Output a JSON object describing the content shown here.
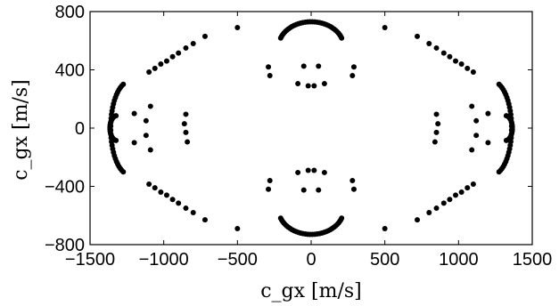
{
  "chart_data": {
    "type": "scatter",
    "title": "",
    "xlabel": "c_gx [m/s]",
    "ylabel": "c_gx [m/s]",
    "xlim": [
      -1500,
      1500
    ],
    "ylim": [
      -800,
      800
    ],
    "xticks": [
      "−1500",
      "−1000",
      "−500",
      "0",
      "500",
      "1000",
      "1500"
    ],
    "yticks": [
      "800",
      "400",
      "0",
      "−400",
      "−800"
    ],
    "grid": false,
    "marker_color": "#000000",
    "series": [
      {
        "points": [
          [
            -500,
            690
          ],
          [
            -500,
            -690
          ],
          [
            500,
            690
          ],
          [
            500,
            -690
          ],
          [
            -720,
            630
          ],
          [
            -800,
            580
          ],
          [
            -850,
            550
          ],
          [
            -900,
            515
          ],
          [
            -940,
            490
          ],
          [
            -980,
            460
          ],
          [
            -1020,
            440
          ],
          [
            -1060,
            410
          ],
          [
            -1100,
            385
          ],
          [
            720,
            630
          ],
          [
            800,
            580
          ],
          [
            850,
            550
          ],
          [
            900,
            515
          ],
          [
            940,
            490
          ],
          [
            980,
            460
          ],
          [
            1020,
            440
          ],
          [
            1060,
            410
          ],
          [
            1100,
            385
          ],
          [
            -720,
            -630
          ],
          [
            -800,
            -580
          ],
          [
            -850,
            -550
          ],
          [
            -900,
            -515
          ],
          [
            -940,
            -490
          ],
          [
            -980,
            -460
          ],
          [
            -1020,
            -440
          ],
          [
            -1060,
            -410
          ],
          [
            -1100,
            -385
          ],
          [
            720,
            -630
          ],
          [
            800,
            -580
          ],
          [
            850,
            -550
          ],
          [
            900,
            -515
          ],
          [
            940,
            -490
          ],
          [
            980,
            -460
          ],
          [
            1020,
            -440
          ],
          [
            1060,
            -410
          ],
          [
            1100,
            -385
          ],
          [
            -290,
            420
          ],
          [
            -280,
            360
          ],
          [
            -280,
            -360
          ],
          [
            -290,
            -420
          ],
          [
            290,
            420
          ],
          [
            280,
            360
          ],
          [
            280,
            -360
          ],
          [
            290,
            -420
          ],
          [
            -50,
            425
          ],
          [
            50,
            425
          ],
          [
            -90,
            305
          ],
          [
            -20,
            290
          ],
          [
            20,
            290
          ],
          [
            90,
            305
          ],
          [
            -50,
            -425
          ],
          [
            50,
            -425
          ],
          [
            -90,
            -305
          ],
          [
            -20,
            -290
          ],
          [
            20,
            -290
          ],
          [
            90,
            -305
          ],
          [
            -850,
            95
          ],
          [
            -860,
            30
          ],
          [
            -850,
            -30
          ],
          [
            -840,
            -95
          ],
          [
            850,
            95
          ],
          [
            860,
            30
          ],
          [
            850,
            -30
          ],
          [
            840,
            -95
          ],
          [
            -1090,
            150
          ],
          [
            -1120,
            50
          ],
          [
            -1120,
            -50
          ],
          [
            -1090,
            -150
          ],
          [
            1090,
            150
          ],
          [
            1120,
            50
          ],
          [
            1120,
            -50
          ],
          [
            1090,
            -150
          ],
          [
            -1200,
            100
          ],
          [
            -1200,
            -100
          ],
          [
            1200,
            100
          ],
          [
            1200,
            -100
          ]
        ]
      }
    ]
  }
}
